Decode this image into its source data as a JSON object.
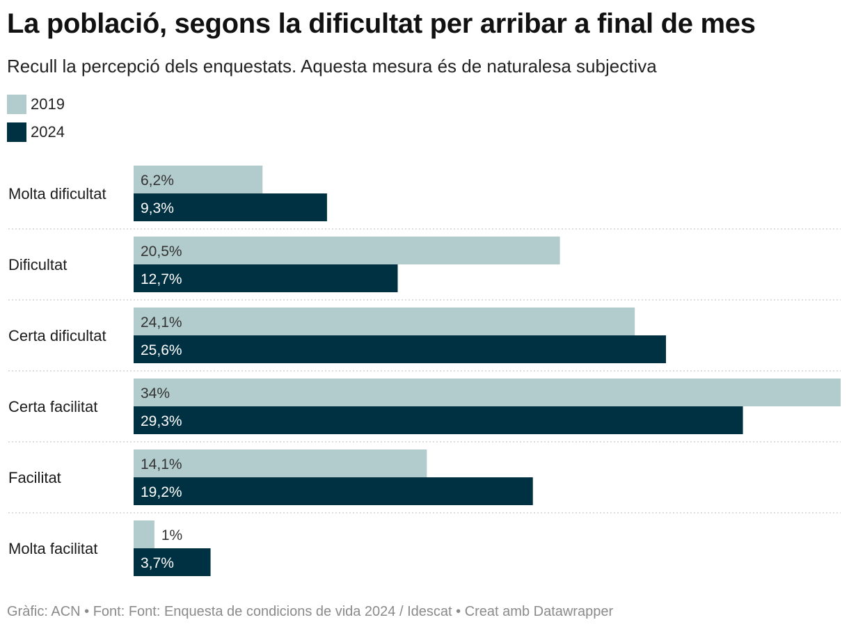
{
  "title": "La població, segons la dificultat per arribar a final de mes",
  "subtitle": "Recull la percepció dels enquestats. Aquesta mesura és de naturalesa subjectiva",
  "legend": [
    {
      "label": "2019",
      "color": "#b2cbcc"
    },
    {
      "label": "2024",
      "color": "#003142"
    }
  ],
  "footer": "Gràfic: ACN • Font: Font: Enquesta de condicions de vida 2024 / Idescat • Creat amb Datawrapper",
  "chart_data": {
    "type": "bar",
    "orientation": "horizontal",
    "title": "La població, segons la dificultat per arribar a final de mes",
    "categories": [
      "Molta dificultat",
      "Dificultat",
      "Certa dificultat",
      "Certa facilitat",
      "Facilitat",
      "Molta facilitat"
    ],
    "series": [
      {
        "name": "2019",
        "color": "#b2cbcc",
        "values": [
          6.2,
          20.5,
          24.1,
          34,
          14.1,
          1
        ],
        "labels": [
          "6,2%",
          "20,5%",
          "24,1%",
          "34%",
          "14,1%",
          "1%"
        ]
      },
      {
        "name": "2024",
        "color": "#003142",
        "values": [
          9.3,
          12.7,
          25.6,
          29.3,
          19.2,
          3.7
        ],
        "labels": [
          "9,3%",
          "12,7%",
          "25,6%",
          "29,3%",
          "19,2%",
          "3,7%"
        ]
      }
    ],
    "xlim": [
      0,
      34
    ],
    "grid": false,
    "legend": "top-left"
  }
}
